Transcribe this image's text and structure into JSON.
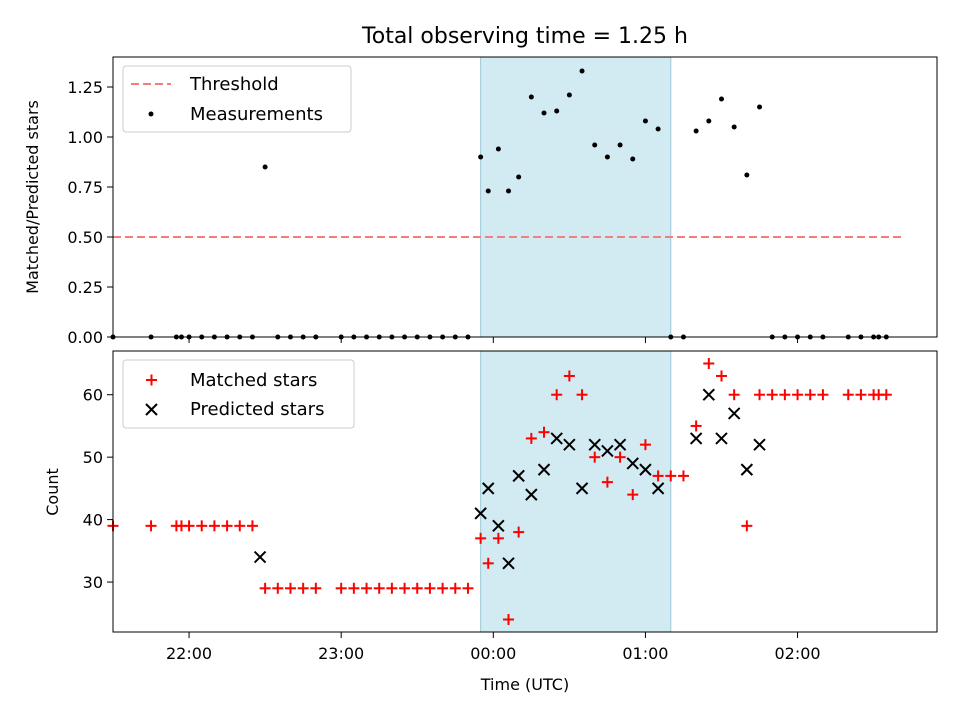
{
  "chart_data": [
    {
      "type": "scatter",
      "title": "Total observing time = 1.25 h",
      "xlabel": "",
      "ylabel": "Matched/Predicted stars",
      "xlim": [
        "21:30",
        "02:55"
      ],
      "ylim": [
        0.0,
        1.4
      ],
      "yticks": [
        "0.00",
        "0.25",
        "0.50",
        "0.75",
        "1.00",
        "1.25"
      ],
      "shaded_span": [
        "23:55",
        "01:10"
      ],
      "legend_position": "top-left",
      "threshold": {
        "name": "Threshold",
        "y": 0.5,
        "x_start": "21:30",
        "x_end": "02:42"
      },
      "series": [
        {
          "name": "Measurements",
          "x": [
            "21:30",
            "21:45",
            "21:55",
            "21:57",
            "22:00",
            "22:05",
            "22:10",
            "22:15",
            "22:20",
            "22:25",
            "22:30",
            "22:35",
            "22:40",
            "22:45",
            "22:50",
            "23:00",
            "23:05",
            "23:10",
            "23:15",
            "23:20",
            "23:25",
            "23:30",
            "23:35",
            "23:40",
            "23:45",
            "23:50",
            "23:55",
            "23:58",
            "00:02",
            "00:06",
            "00:10",
            "00:15",
            "00:20",
            "00:25",
            "00:30",
            "00:35",
            "00:40",
            "00:45",
            "00:50",
            "00:55",
            "01:00",
            "01:05",
            "01:10",
            "01:15",
            "01:20",
            "01:25",
            "01:30",
            "01:35",
            "01:40",
            "01:45",
            "01:50",
            "01:55",
            "02:00",
            "02:05",
            "02:10",
            "02:20",
            "02:25",
            "02:30",
            "02:32",
            "02:35"
          ],
          "y": [
            0,
            0,
            0,
            0,
            0,
            0,
            0,
            0,
            0,
            0,
            0.85,
            0,
            0,
            0,
            0,
            0,
            0,
            0,
            0,
            0,
            0,
            0,
            0,
            0,
            0,
            0,
            0.9,
            0.73,
            0.94,
            0.73,
            0.8,
            1.2,
            1.12,
            1.13,
            1.21,
            1.33,
            0.96,
            0.9,
            0.96,
            0.89,
            1.08,
            1.04,
            0,
            0,
            1.03,
            1.08,
            1.19,
            1.05,
            0.81,
            1.15,
            0,
            0,
            0,
            0,
            0,
            0,
            0,
            0,
            0,
            0
          ]
        }
      ]
    },
    {
      "type": "scatter",
      "title": "",
      "xlabel": "Time (UTC)",
      "ylabel": "Count",
      "xlim": [
        "21:30",
        "02:55"
      ],
      "ylim": [
        22,
        67
      ],
      "yticks": [
        "30",
        "40",
        "50",
        "60"
      ],
      "xticks": [
        "22:00",
        "23:00",
        "00:00",
        "01:00",
        "02:00"
      ],
      "shaded_span": [
        "23:55",
        "01:10"
      ],
      "legend_position": "top-left",
      "series": [
        {
          "name": "Matched stars",
          "x": [
            "21:30",
            "21:45",
            "21:55",
            "21:57",
            "22:00",
            "22:05",
            "22:10",
            "22:15",
            "22:20",
            "22:25",
            "22:30",
            "22:35",
            "22:40",
            "22:45",
            "22:50",
            "23:00",
            "23:05",
            "23:10",
            "23:15",
            "23:20",
            "23:25",
            "23:30",
            "23:35",
            "23:40",
            "23:45",
            "23:50",
            "23:55",
            "23:58",
            "00:02",
            "00:06",
            "00:10",
            "00:15",
            "00:20",
            "00:25",
            "00:30",
            "00:35",
            "00:40",
            "00:45",
            "00:50",
            "00:55",
            "01:00",
            "01:05",
            "01:10",
            "01:15",
            "01:20",
            "01:25",
            "01:30",
            "01:35",
            "01:40",
            "01:45",
            "01:50",
            "01:55",
            "02:00",
            "02:05",
            "02:10",
            "02:20",
            "02:25",
            "02:30",
            "02:32",
            "02:35"
          ],
          "y": [
            39,
            39,
            39,
            39,
            39,
            39,
            39,
            39,
            39,
            39,
            29,
            29,
            29,
            29,
            29,
            29,
            29,
            29,
            29,
            29,
            29,
            29,
            29,
            29,
            29,
            29,
            37,
            33,
            37,
            24,
            38,
            53,
            54,
            60,
            63,
            60,
            50,
            46,
            50,
            44,
            52,
            47,
            47,
            47,
            55,
            65,
            63,
            60,
            39,
            60,
            60,
            60,
            60,
            60,
            60,
            60,
            60,
            60,
            60,
            60
          ]
        },
        {
          "name": "Predicted stars",
          "x": [
            "22:28",
            "23:55",
            "23:58",
            "00:02",
            "00:06",
            "00:10",
            "00:15",
            "00:20",
            "00:25",
            "00:30",
            "00:35",
            "00:40",
            "00:45",
            "00:50",
            "00:55",
            "01:00",
            "01:05",
            "01:20",
            "01:25",
            "01:30",
            "01:35",
            "01:40",
            "01:45"
          ],
          "y": [
            34,
            41,
            45,
            39,
            33,
            47,
            44,
            48,
            53,
            52,
            45,
            52,
            51,
            52,
            49,
            48,
            45,
            53,
            60,
            53,
            57,
            48,
            52
          ]
        }
      ]
    }
  ],
  "colors": {
    "threshold": "#f08080",
    "measurement": "#000000",
    "matched": "#ff0000",
    "predicted": "#000000",
    "span": "#add8e6"
  }
}
